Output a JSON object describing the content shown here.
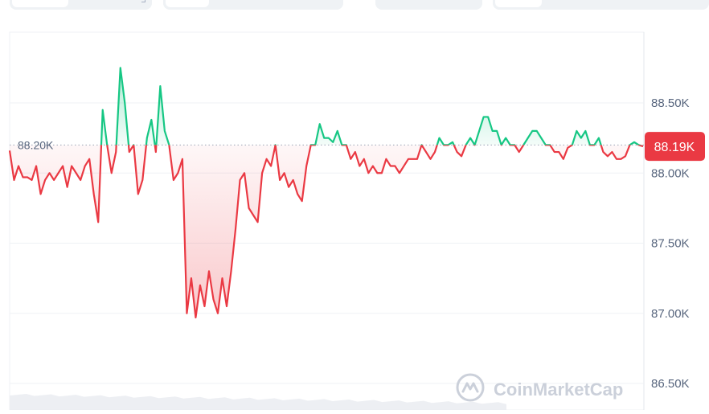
{
  "chart_data": {
    "type": "line",
    "title": "",
    "xlabel": "",
    "ylabel": "",
    "ylim": [
      86.5,
      89.0
    ],
    "yticks": [
      {
        "value": 88.5,
        "label": "88.50K"
      },
      {
        "value": 88.0,
        "label": "88.00K"
      },
      {
        "value": 87.5,
        "label": "87.50K"
      },
      {
        "value": 87.0,
        "label": "87.00K"
      },
      {
        "value": 86.5,
        "label": "86.50K"
      }
    ],
    "grid": true,
    "baseline": {
      "value": 88.2,
      "label": "88.20K"
    },
    "current": {
      "value": 88.19,
      "label": "88.19K"
    },
    "colors": {
      "above": "#16c784",
      "below": "#ea3943",
      "grid": "#eff2f5",
      "axis_text": "#58667e",
      "badge": "#ea3943"
    },
    "series": [
      {
        "unit": "K USD",
        "values": [
          88.16,
          87.95,
          88.05,
          87.97,
          87.97,
          87.95,
          88.05,
          87.85,
          87.95,
          88.0,
          87.95,
          88.0,
          88.05,
          87.9,
          88.05,
          88.0,
          87.95,
          88.05,
          88.1,
          87.85,
          87.65,
          88.45,
          88.2,
          88.0,
          88.15,
          88.75,
          88.5,
          88.15,
          88.2,
          87.85,
          87.95,
          88.25,
          88.38,
          88.15,
          88.62,
          88.3,
          88.2,
          87.95,
          88.0,
          88.1,
          87.0,
          87.25,
          86.97,
          87.2,
          87.05,
          87.3,
          87.1,
          87.0,
          87.25,
          87.05,
          87.3,
          87.6,
          87.95,
          88.0,
          87.75,
          87.7,
          87.65,
          88.0,
          88.1,
          88.05,
          88.2,
          87.95,
          88.0,
          87.9,
          87.95,
          87.85,
          87.8,
          88.05,
          88.2,
          88.2,
          88.35,
          88.25,
          88.25,
          88.22,
          88.3,
          88.2,
          88.2,
          88.1,
          88.15,
          88.05,
          88.1,
          88.0,
          88.05,
          88.0,
          88.0,
          88.1,
          88.05,
          88.05,
          88.0,
          88.05,
          88.1,
          88.1,
          88.1,
          88.2,
          88.15,
          88.1,
          88.15,
          88.25,
          88.2,
          88.2,
          88.22,
          88.15,
          88.12,
          88.2,
          88.25,
          88.2,
          88.3,
          88.4,
          88.4,
          88.3,
          88.3,
          88.2,
          88.25,
          88.2,
          88.2,
          88.15,
          88.2,
          88.25,
          88.3,
          88.3,
          88.25,
          88.2,
          88.2,
          88.15,
          88.15,
          88.1,
          88.18,
          88.2,
          88.3,
          88.25,
          88.3,
          88.2,
          88.2,
          88.25,
          88.15,
          88.12,
          88.15,
          88.1,
          88.1,
          88.12,
          88.2,
          88.22,
          88.2,
          88.19
        ]
      }
    ]
  },
  "watermark": {
    "text": "CoinMarketCap"
  }
}
